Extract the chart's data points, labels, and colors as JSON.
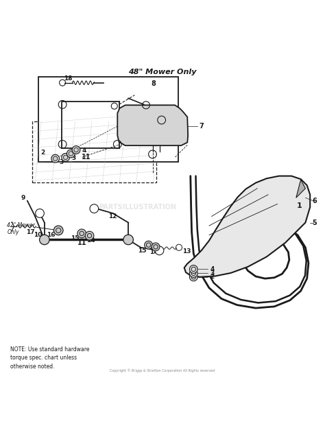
{
  "title": "48\" Mower Only",
  "background_color": "#ffffff",
  "line_color": "#1a1a1a",
  "note_text": "NOTE: Use standard hardware\ntorque spec. chart unless\notherwise noted.",
  "copyright_text": "Copyright © Briggs & Stratton Corporation All Rights reserved",
  "watermark_text": "PARTSILLUSTRATION",
  "figsize": [
    4.74,
    6.4
  ],
  "dpi": 100
}
